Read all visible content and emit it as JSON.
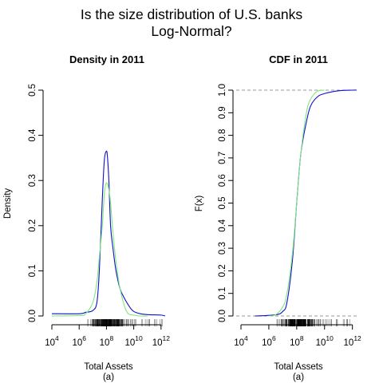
{
  "figure": {
    "title_line1": "Is the size distribution of U.S. banks",
    "title_line2": "Log-Normal?"
  },
  "colors": {
    "empirical": "#1010cc",
    "lognormal": "#7ee87e",
    "reference": "#9a9a9a"
  },
  "chart_data": [
    {
      "type": "line",
      "title": "Density in 2011",
      "xlabel": "Total Assets",
      "xsublabel": "(a)",
      "ylabel": "Density",
      "xscale": "log10",
      "xlim": [
        10000,
        3000000000000
      ],
      "ylim": [
        0,
        0.5
      ],
      "xticks": [
        10000,
        1000000,
        100000000,
        10000000000,
        1000000000000
      ],
      "xtick_labels": [
        {
          "base": "10",
          "exp": "4"
        },
        {
          "base": "10",
          "exp": "6"
        },
        {
          "base": "10",
          "exp": "8"
        },
        {
          "base": "10",
          "exp": "10"
        },
        {
          "base": "10",
          "exp": "12"
        }
      ],
      "yticks": [
        "0.0",
        "0.1",
        "0.2",
        "0.3",
        "0.4",
        "0.5"
      ],
      "rug": true,
      "series": [
        {
          "color": "#1010cc",
          "x": [
            10000,
            1000000,
            3000000,
            10000000,
            20000000,
            30000000,
            50000000,
            70000000,
            100000000,
            120000000,
            150000000,
            200000000,
            300000000,
            500000000,
            1000000000,
            2000000000,
            5000000000,
            10000000000,
            30000000000,
            100000000000,
            1000000000000,
            2000000000000
          ],
          "y": [
            0.005,
            0.005,
            0.008,
            0.012,
            0.03,
            0.1,
            0.26,
            0.345,
            0.365,
            0.35,
            0.3,
            0.2,
            0.15,
            0.1,
            0.06,
            0.04,
            0.02,
            0.01,
            0.005,
            0.003,
            0.002,
            0
          ]
        },
        {
          "color": "#7ee87e",
          "x": [
            10000,
            1000000,
            3000000,
            10000000,
            20000000,
            30000000,
            50000000,
            70000000,
            100000000,
            150000000,
            200000000,
            300000000,
            500000000,
            1000000000,
            3000000000,
            10000000000,
            30000000000,
            100000000000
          ],
          "y": [
            0,
            0.001,
            0.005,
            0.03,
            0.075,
            0.13,
            0.2,
            0.27,
            0.295,
            0.28,
            0.25,
            0.185,
            0.12,
            0.06,
            0.01,
            0.002,
            0,
            0
          ]
        }
      ]
    },
    {
      "type": "line",
      "title": "CDF in 2011",
      "xlabel": "Total Assets",
      "xsublabel": "(a)",
      "ylabel": "F(x)",
      "xscale": "log10",
      "xlim": [
        10000,
        3000000000000
      ],
      "ylim": [
        0,
        1
      ],
      "xticks": [
        10000,
        1000000,
        100000000,
        10000000000,
        1000000000000
      ],
      "xtick_labels": [
        {
          "base": "10",
          "exp": "4"
        },
        {
          "base": "10",
          "exp": "6"
        },
        {
          "base": "10",
          "exp": "8"
        },
        {
          "base": "10",
          "exp": "10"
        },
        {
          "base": "10",
          "exp": "12"
        }
      ],
      "yticks": [
        "0.0",
        "0.1",
        "0.2",
        "0.3",
        "0.4",
        "0.5",
        "0.6",
        "0.7",
        "0.8",
        "0.9",
        "1.0"
      ],
      "reference_lines": [
        0,
        1
      ],
      "rug": true,
      "series": [
        {
          "color": "#1010cc",
          "x": [
            100000,
            3000000,
            10000000,
            20000000,
            50000000,
            100000000,
            200000000,
            500000000,
            1000000000,
            3000000000,
            10000000000,
            100000000000,
            1000000000000,
            2000000000000
          ],
          "y": [
            0,
            0.005,
            0.02,
            0.06,
            0.25,
            0.5,
            0.72,
            0.86,
            0.93,
            0.97,
            0.985,
            0.997,
            1.0,
            1.0
          ]
        },
        {
          "color": "#7ee87e",
          "x": [
            1000000,
            3000000,
            10000000,
            20000000,
            50000000,
            100000000,
            200000000,
            500000000,
            1000000000,
            3000000000,
            10000000000
          ],
          "y": [
            0,
            0.005,
            0.04,
            0.1,
            0.28,
            0.5,
            0.72,
            0.9,
            0.96,
            0.995,
            1.0
          ]
        }
      ]
    }
  ]
}
